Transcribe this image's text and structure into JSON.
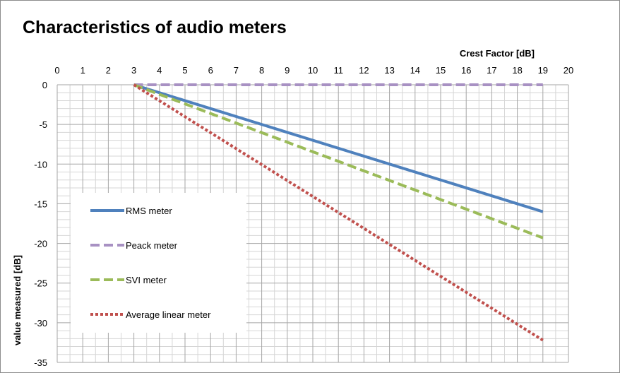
{
  "chart_data": {
    "type": "line",
    "title": "Characteristics of audio meters",
    "xlabel": "Crest Factor [dB]",
    "ylabel": "value measured [dB]",
    "xlim": [
      0,
      20
    ],
    "ylim": [
      -35,
      0
    ],
    "x_ticks": [
      0,
      1,
      2,
      3,
      4,
      5,
      6,
      7,
      8,
      9,
      10,
      11,
      12,
      13,
      14,
      15,
      16,
      17,
      18,
      19,
      20
    ],
    "y_ticks": [
      0,
      -5,
      -10,
      -15,
      -20,
      -25,
      -30,
      -35
    ],
    "x_axis_position": "top",
    "grid": true,
    "legend_placement": "left-center",
    "series": [
      {
        "name": "RMS meter",
        "color": "#4f81bd",
        "style": "solid",
        "x": [
          3,
          19
        ],
        "y": [
          0,
          -16
        ]
      },
      {
        "name": "Peack meter",
        "color": "#a891c3",
        "style": "dashed",
        "x": [
          3,
          19
        ],
        "y": [
          0,
          0
        ]
      },
      {
        "name": "SVI meter",
        "color": "#9bbb59",
        "style": "dashed",
        "x": [
          3,
          19
        ],
        "y": [
          0,
          -19.3
        ]
      },
      {
        "name": "Average linear meter",
        "color": "#c0504d",
        "style": "dotted",
        "x": [
          3,
          19
        ],
        "y": [
          0,
          -32.2
        ]
      }
    ]
  }
}
